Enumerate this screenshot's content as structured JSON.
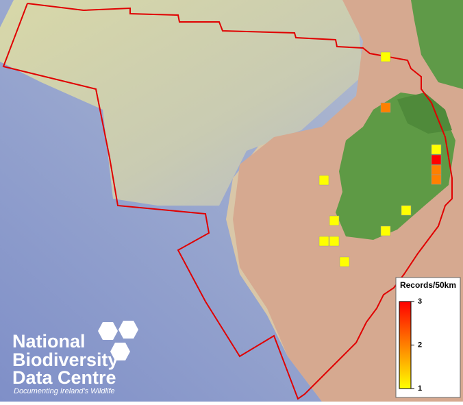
{
  "legend": {
    "title": "Records/50km",
    "range": [
      1,
      3
    ],
    "ticks": [
      1,
      2,
      3
    ],
    "colors": [
      "#ffff00",
      "#ff0000"
    ]
  },
  "records": [
    1,
    2,
    1,
    3,
    2,
    2,
    1,
    1,
    1,
    1,
    1,
    1,
    1
  ],
  "logo": {
    "line1": "National",
    "line2": "Biodiversity",
    "line3": "Data Centre",
    "tagline": "Documenting Ireland's Wildlife"
  }
}
